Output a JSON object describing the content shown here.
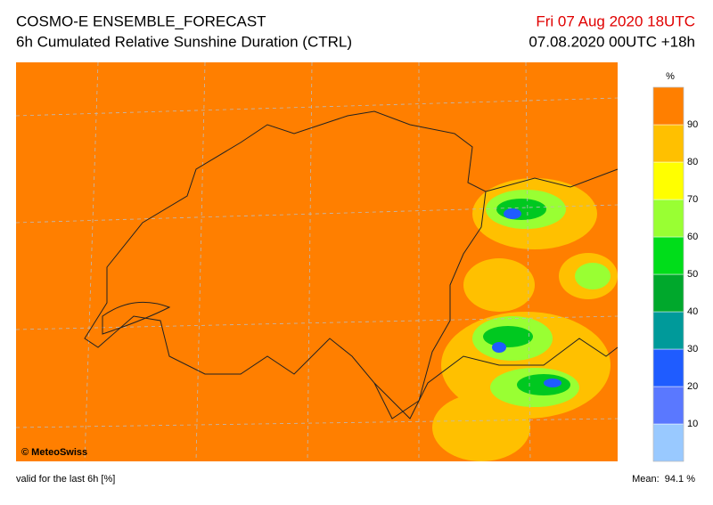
{
  "header": {
    "title": "COSMO-E ENSEMBLE_FORECAST",
    "subtitle": "6h Cumulated Relative Sunshine Duration (CTRL)",
    "valid_time": "Fri 07 Aug 2020 18UTC",
    "run": "07.08.2020 00UTC +18h"
  },
  "map": {
    "credit": "© MeteoSwiss"
  },
  "legend": {
    "unit": "%",
    "ticks": [
      10,
      20,
      30,
      40,
      50,
      60,
      70,
      80,
      90
    ],
    "colors": [
      "#99c9ff",
      "#5a78ff",
      "#1f5cff",
      "#009a9a",
      "#00a82c",
      "#00dd1a",
      "#99ff33",
      "#ffff00",
      "#ffc000",
      "#ff7f00"
    ]
  },
  "footer": {
    "note": "valid for the last 6h [%]",
    "mean": "Mean:  94.1 %"
  }
}
